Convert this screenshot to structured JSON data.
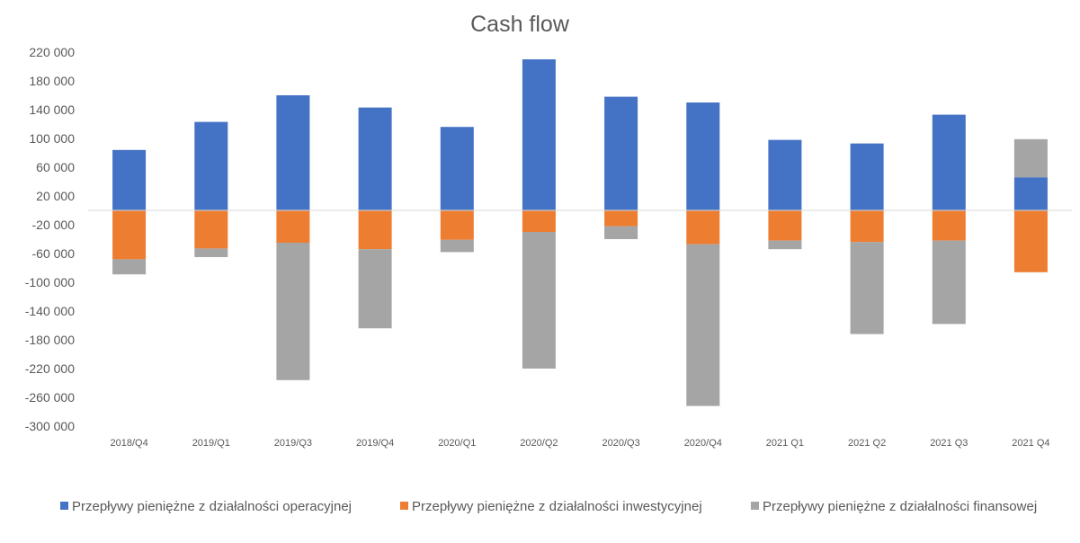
{
  "chart_data": {
    "type": "bar",
    "stacked": true,
    "title": "Cash flow",
    "xlabel": "",
    "ylabel": "",
    "ylim": [
      -300000,
      220000
    ],
    "yticks": [
      220000,
      180000,
      140000,
      100000,
      60000,
      20000,
      -20000,
      -60000,
      -100000,
      -140000,
      -180000,
      -220000,
      -260000,
      -300000
    ],
    "ytick_labels": [
      "220 000",
      "180 000",
      "140 000",
      "100 000",
      "60 000",
      "20 000",
      "-20 000",
      "-60 000",
      "-100 000",
      "-140 000",
      "-180 000",
      "-220 000",
      "-260 000",
      "-300 000"
    ],
    "grid": false,
    "legend_position": "bottom",
    "categories": [
      "2018/Q4",
      "2019/Q1",
      "2019/Q3",
      "2019/Q4",
      "2020/Q1",
      "2020/Q2",
      "2020/Q3",
      "2020/Q4",
      "2021 Q1",
      "2021 Q2",
      "2021 Q3",
      "2021 Q4"
    ],
    "series": [
      {
        "name": "Przepływy pieniężne z działalności operacyjnej",
        "color": "#4472C4",
        "values": [
          84000,
          123000,
          160000,
          143000,
          116000,
          210000,
          158000,
          150000,
          98000,
          93000,
          133000,
          46000
        ]
      },
      {
        "name": "Przepływy pieniężne z działalności inwestycyjnej",
        "color": "#ED7D31",
        "values": [
          -68000,
          -53000,
          -45000,
          -54000,
          -41000,
          -30000,
          -22000,
          -47000,
          -42000,
          -44000,
          -42000,
          -86000
        ]
      },
      {
        "name": "Przepływy pieniężne z działalności finansowej",
        "color": "#A5A5A5",
        "values": [
          -21000,
          -12000,
          -191000,
          -110000,
          -17000,
          -190000,
          -18000,
          -225000,
          -12000,
          -128000,
          -116000,
          53000
        ]
      }
    ]
  }
}
